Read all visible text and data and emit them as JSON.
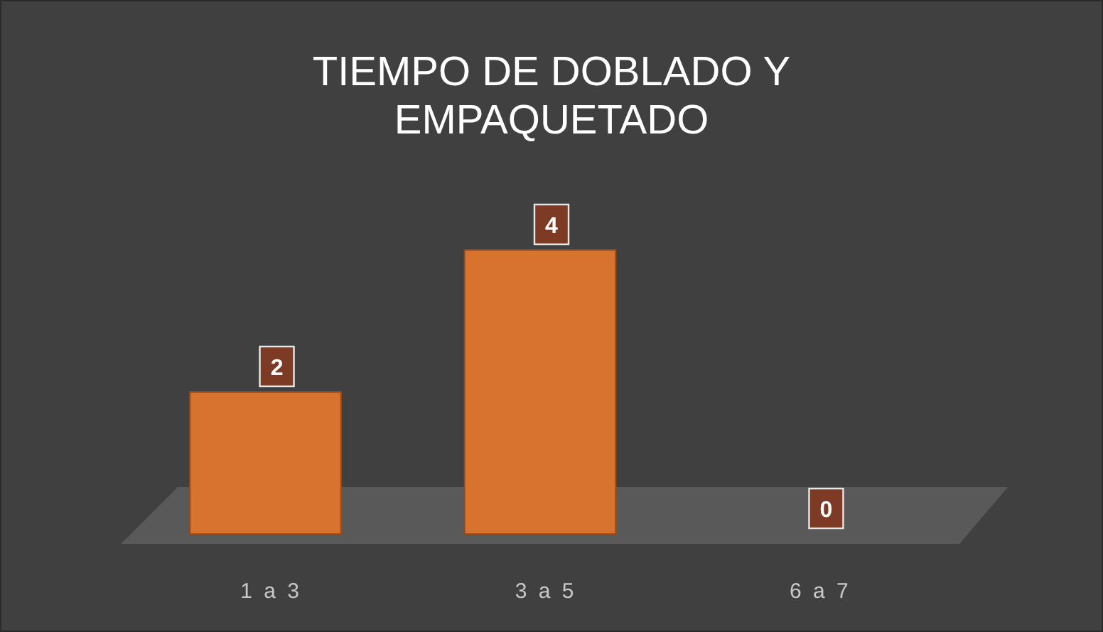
{
  "chart_data": {
    "type": "bar",
    "title": "TIEMPO DE DOBLADO Y EMPAQUETADO",
    "categories": [
      "1 a 3",
      "3 a 5",
      "6 a 7"
    ],
    "values": [
      2,
      4,
      0
    ],
    "color": "#d8722f",
    "data_labels": true
  }
}
